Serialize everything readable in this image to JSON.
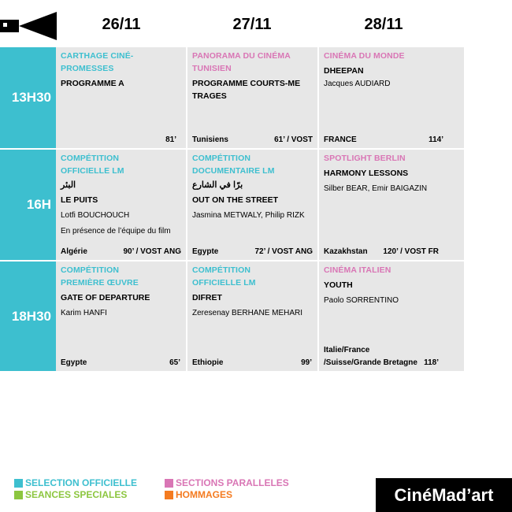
{
  "dates": [
    "26/11",
    "27/11",
    "28/11"
  ],
  "times": [
    "13H30",
    "16H",
    "18H30"
  ],
  "cells": {
    "r1c1": {
      "section": "CARTHAGE CINÉ-PROMESSES",
      "title": "PROGRAMME A",
      "bottom_left": "",
      "bottom_right": "81’"
    },
    "r1c2": {
      "section": "PANORAMA DU CINÉMA TUNISIEN",
      "title": "PROGRAMME COURTS-METRAGES",
      "bottom_left": "Tunisiens",
      "bottom_right": "61’ / VOST"
    },
    "r1c3": {
      "section": "CINÉMA DU MONDE",
      "title": "DHEEPAN",
      "director": "Jacques AUDIARD",
      "bottom_left": "FRANCE",
      "bottom_right": "114’"
    },
    "r2c1": {
      "section": "COMPÉTITION OFFICIELLE LM",
      "arabic": "البئر",
      "title": "LE PUITS",
      "director": "Lotfi BOUCHOUCH",
      "note": "En présence de l’équipe du film",
      "bottom_left": "Algérie",
      "bottom_right": "90’ / VOST ANG"
    },
    "r2c2": {
      "section": "COMPÉTITION DOCUMENTAIRE LM",
      "arabic": "برّا في الشارع",
      "title": "OUT ON THE STREET",
      "director": "Jasmina METWALY, Philip RIZK",
      "bottom_left": "Egypte",
      "bottom_right": "72’ / VOST ANG"
    },
    "r2c3": {
      "section": "SPOTLIGHT BERLIN",
      "title": "HARMONY LESSONS",
      "director": "Silber BEAR, Emir BAIGAZIN",
      "bottom_left": "Kazakhstan",
      "bottom_right": "120’ / VOST FR"
    },
    "r3c1": {
      "section": "COMPÉTITION PREMIÈRE ŒUVRE",
      "title": "GATE OF DEPARTURE",
      "director": "Karim HANFI",
      "bottom_left": "Egypte",
      "bottom_right": "65’"
    },
    "r3c2": {
      "section": "COMPÉTITION OFFICIELLE LM",
      "title": "DIFRET",
      "director": "Zeresenay BERHANE MEHARI",
      "bottom_left": "Ethiopie",
      "bottom_right": "99’"
    },
    "r3c3": {
      "section": "CINÉMA ITALIEN",
      "title": "YOUTH",
      "director": "Paolo SORRENTINO",
      "bottom_left": "Italie/France /Suisse/Grande Bretagne",
      "bottom_right": "118’"
    }
  },
  "legend": {
    "officielle": {
      "label": "SELECTION OFFICIELLE",
      "color": "#3dbfcf"
    },
    "speciales": {
      "label": "SEANCES SPECIALES",
      "color": "#8cc63f"
    },
    "paralleles": {
      "label": "SECTIONS PARALLELES",
      "color": "#d976b5"
    },
    "hommages": {
      "label": "HOMMAGES",
      "color": "#f47b20"
    }
  },
  "brand": "CinéMad’art",
  "icon": "camera-icon"
}
